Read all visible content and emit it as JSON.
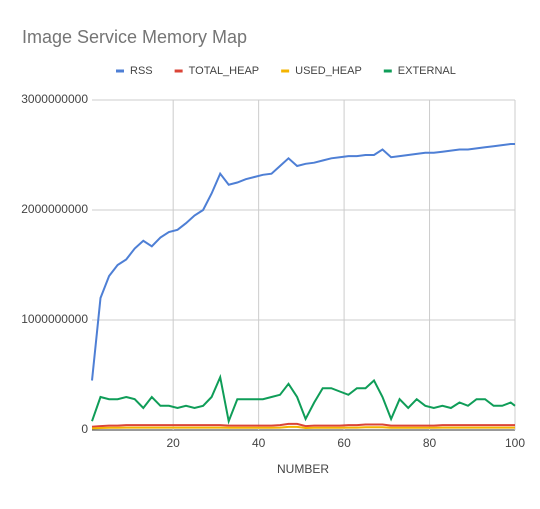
{
  "chart_data": {
    "type": "line",
    "title": "Image Service Memory Map",
    "x_label": "NUMBER",
    "x": [
      1,
      3,
      5,
      7,
      9,
      11,
      13,
      15,
      17,
      19,
      21,
      23,
      25,
      27,
      29,
      31,
      33,
      35,
      37,
      39,
      41,
      43,
      45,
      47,
      49,
      51,
      53,
      55,
      57,
      59,
      61,
      63,
      65,
      67,
      69,
      71,
      73,
      75,
      77,
      79,
      81,
      83,
      85,
      87,
      89,
      91,
      93,
      95,
      97,
      99,
      100
    ],
    "series": [
      {
        "name": "RSS",
        "color": "#4e7fd5",
        "values": [
          450000000,
          1200000000,
          1400000000,
          1500000000,
          1550000000,
          1650000000,
          1720000000,
          1670000000,
          1750000000,
          1800000000,
          1820000000,
          1880000000,
          1950000000,
          2000000000,
          2150000000,
          2330000000,
          2230000000,
          2250000000,
          2280000000,
          2300000000,
          2320000000,
          2330000000,
          2400000000,
          2470000000,
          2400000000,
          2420000000,
          2430000000,
          2450000000,
          2470000000,
          2480000000,
          2490000000,
          2490000000,
          2500000000,
          2500000000,
          2550000000,
          2480000000,
          2490000000,
          2500000000,
          2510000000,
          2520000000,
          2520000000,
          2530000000,
          2540000000,
          2550000000,
          2550000000,
          2560000000,
          2570000000,
          2580000000,
          2590000000,
          2600000000,
          2600000000
        ]
      },
      {
        "name": "TOTAL_HEAP",
        "color": "#db4437",
        "values": [
          30000000,
          35000000,
          40000000,
          40000000,
          45000000,
          45000000,
          45000000,
          45000000,
          45000000,
          45000000,
          45000000,
          45000000,
          45000000,
          45000000,
          45000000,
          45000000,
          40000000,
          40000000,
          40000000,
          40000000,
          40000000,
          40000000,
          45000000,
          55000000,
          55000000,
          35000000,
          40000000,
          40000000,
          40000000,
          40000000,
          45000000,
          45000000,
          50000000,
          50000000,
          50000000,
          40000000,
          40000000,
          40000000,
          40000000,
          40000000,
          40000000,
          45000000,
          45000000,
          45000000,
          45000000,
          45000000,
          45000000,
          45000000,
          45000000,
          45000000,
          45000000
        ]
      },
      {
        "name": "USED_HEAP",
        "color": "#f4b400",
        "values": [
          15000000,
          18000000,
          20000000,
          20000000,
          22000000,
          22000000,
          22000000,
          22000000,
          22000000,
          22000000,
          22000000,
          22000000,
          22000000,
          22000000,
          22000000,
          22000000,
          20000000,
          20000000,
          20000000,
          20000000,
          20000000,
          20000000,
          22000000,
          28000000,
          28000000,
          18000000,
          20000000,
          20000000,
          20000000,
          20000000,
          22000000,
          22000000,
          25000000,
          25000000,
          25000000,
          20000000,
          20000000,
          20000000,
          20000000,
          20000000,
          20000000,
          22000000,
          22000000,
          22000000,
          22000000,
          22000000,
          22000000,
          22000000,
          22000000,
          22000000,
          22000000
        ]
      },
      {
        "name": "EXTERNAL",
        "color": "#0f9d58",
        "values": [
          80000000,
          300000000,
          280000000,
          280000000,
          300000000,
          280000000,
          200000000,
          300000000,
          220000000,
          220000000,
          200000000,
          220000000,
          200000000,
          220000000,
          300000000,
          480000000,
          80000000,
          280000000,
          280000000,
          280000000,
          280000000,
          300000000,
          320000000,
          420000000,
          300000000,
          100000000,
          250000000,
          380000000,
          380000000,
          350000000,
          320000000,
          380000000,
          380000000,
          450000000,
          300000000,
          100000000,
          280000000,
          200000000,
          280000000,
          220000000,
          200000000,
          220000000,
          200000000,
          250000000,
          220000000,
          280000000,
          280000000,
          220000000,
          220000000,
          250000000,
          220000000
        ]
      }
    ],
    "xlim": [
      1,
      100
    ],
    "xticks": [
      20,
      40,
      60,
      80,
      100
    ],
    "ylim": [
      0,
      3000000000
    ],
    "yticks": [
      0,
      1000000000,
      2000000000,
      3000000000
    ],
    "grid": true
  }
}
